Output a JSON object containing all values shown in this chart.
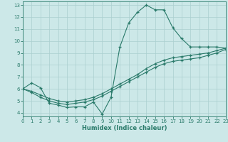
{
  "xlabel": "Humidex (Indice chaleur)",
  "bg_color": "#cce8e8",
  "grid_color": "#aacfcf",
  "line_color": "#2a7a6a",
  "xlim": [
    0,
    23
  ],
  "ylim": [
    3.7,
    13.3
  ],
  "xticks": [
    0,
    1,
    2,
    3,
    4,
    5,
    6,
    7,
    8,
    9,
    10,
    11,
    12,
    13,
    14,
    15,
    16,
    17,
    18,
    19,
    20,
    21,
    22,
    23
  ],
  "yticks": [
    4,
    5,
    6,
    7,
    8,
    9,
    10,
    11,
    12,
    13
  ],
  "line1_x": [
    0,
    1,
    2,
    3,
    4,
    5,
    6,
    7,
    8,
    9,
    10,
    11,
    12,
    13,
    14,
    15,
    16,
    17,
    18,
    19,
    20,
    21,
    22,
    23
  ],
  "line1_y": [
    6.0,
    6.5,
    6.1,
    4.8,
    4.65,
    4.45,
    4.5,
    4.5,
    4.9,
    3.9,
    5.3,
    9.5,
    11.5,
    12.4,
    13.0,
    12.6,
    12.6,
    11.1,
    10.2,
    9.5,
    9.5,
    9.5,
    9.5,
    9.4
  ],
  "line2_x": [
    0,
    1,
    2,
    3,
    4,
    5,
    6,
    7,
    8,
    9,
    10,
    11,
    12,
    13,
    14,
    15,
    16,
    17,
    18,
    19,
    20,
    21,
    22,
    23
  ],
  "line2_y": [
    6.0,
    5.8,
    5.5,
    5.2,
    5.0,
    4.9,
    5.0,
    5.1,
    5.3,
    5.6,
    6.0,
    6.4,
    6.8,
    7.2,
    7.7,
    8.1,
    8.4,
    8.6,
    8.7,
    8.8,
    8.9,
    9.0,
    9.2,
    9.4
  ],
  "line3_x": [
    0,
    1,
    2,
    3,
    4,
    5,
    6,
    7,
    8,
    9,
    10,
    11,
    12,
    13,
    14,
    15,
    16,
    17,
    18,
    19,
    20,
    21,
    22,
    23
  ],
  "line3_y": [
    6.0,
    5.7,
    5.3,
    5.0,
    4.8,
    4.7,
    4.8,
    4.9,
    5.1,
    5.4,
    5.8,
    6.2,
    6.6,
    7.0,
    7.4,
    7.8,
    8.1,
    8.3,
    8.4,
    8.5,
    8.6,
    8.8,
    9.0,
    9.3
  ]
}
